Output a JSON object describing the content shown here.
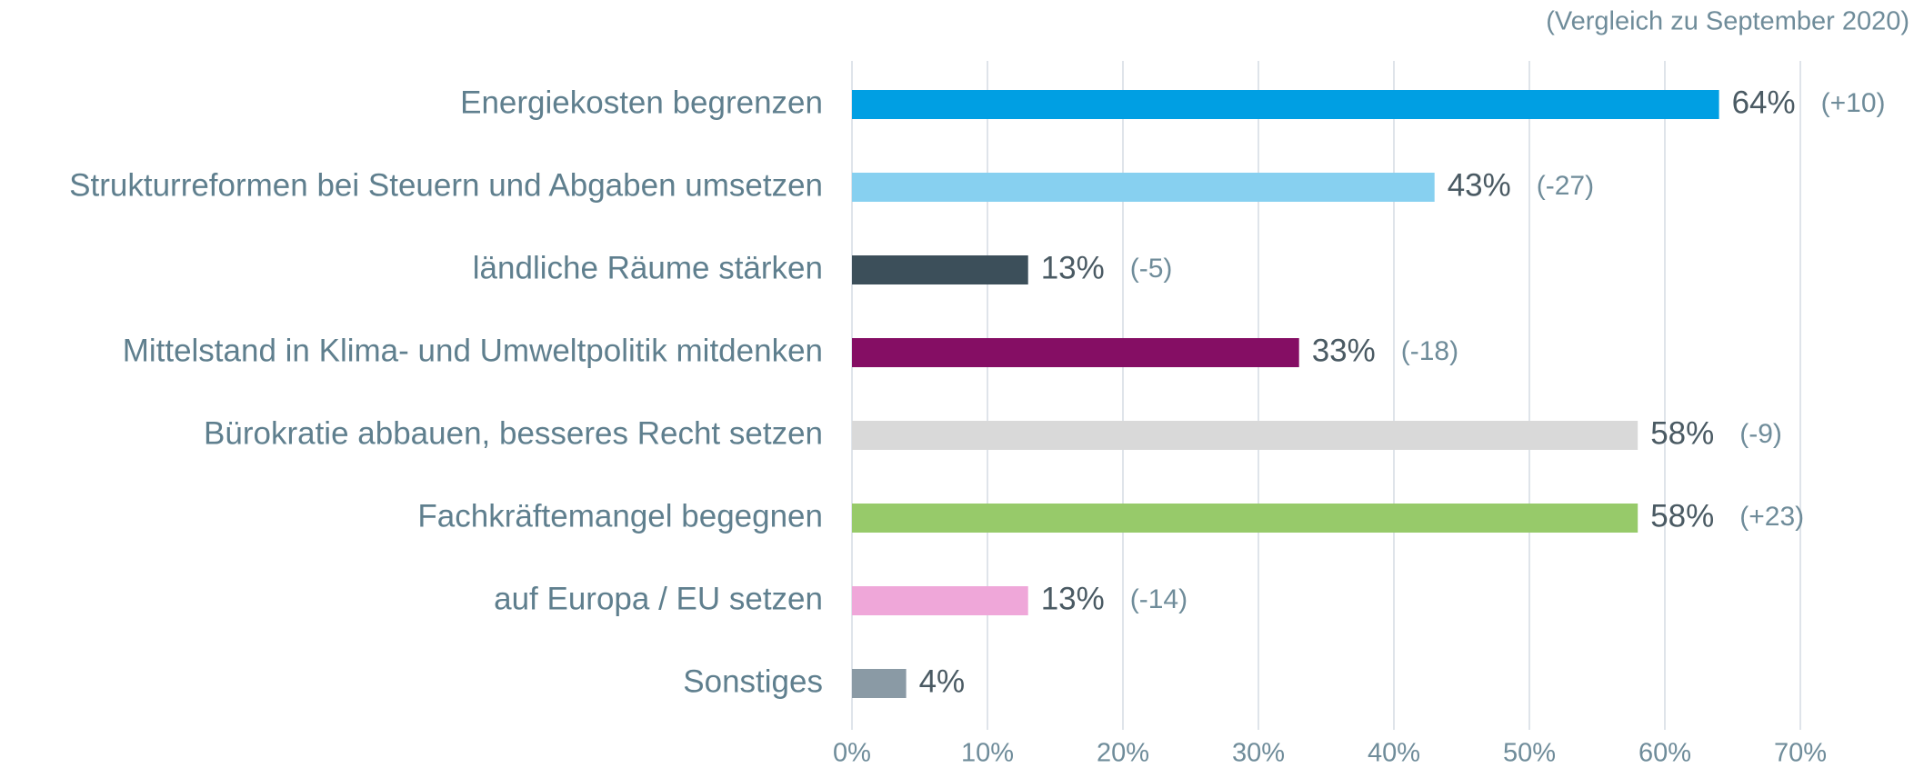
{
  "chart_data": {
    "type": "bar",
    "orientation": "horizontal",
    "subtitle": "(Vergleich zu September 2020)",
    "categories": [
      "Energiekosten begrenzen",
      "Strukturreformen bei Steuern und Abgaben umsetzen",
      "ländliche Räume stärken",
      "Mittelstand in Klima- und Umweltpolitik mitdenken",
      "Bürokratie abbauen, besseres Recht setzen",
      "Fachkräftemangel begegnen",
      "auf Europa / EU setzen",
      "Sonstiges"
    ],
    "values": [
      64,
      43,
      13,
      33,
      58,
      58,
      13,
      4
    ],
    "value_labels": [
      "64%",
      "43%",
      "13%",
      "33%",
      "58%",
      "58%",
      "13%",
      "4%"
    ],
    "change_labels": [
      "(+10)",
      "(-27)",
      "(-5)",
      "(-18)",
      "(-9)",
      "(+23)",
      "(-14)",
      null
    ],
    "colors": [
      "#009fe3",
      "#87d0f0",
      "#3c4f5a",
      "#850e64",
      "#d9d9d9",
      "#97ca6a",
      "#efa7d9",
      "#8a9aa5"
    ],
    "xlim": [
      0,
      70
    ],
    "xticks": [
      {
        "value": 0,
        "label": "0%"
      },
      {
        "value": 10,
        "label": "10%"
      },
      {
        "value": 20,
        "label": "20%"
      },
      {
        "value": 30,
        "label": "30%"
      },
      {
        "value": 40,
        "label": "40%"
      },
      {
        "value": 50,
        "label": "50%"
      },
      {
        "value": 60,
        "label": "60%"
      },
      {
        "value": 70,
        "label": "70%"
      }
    ],
    "grid": true
  }
}
